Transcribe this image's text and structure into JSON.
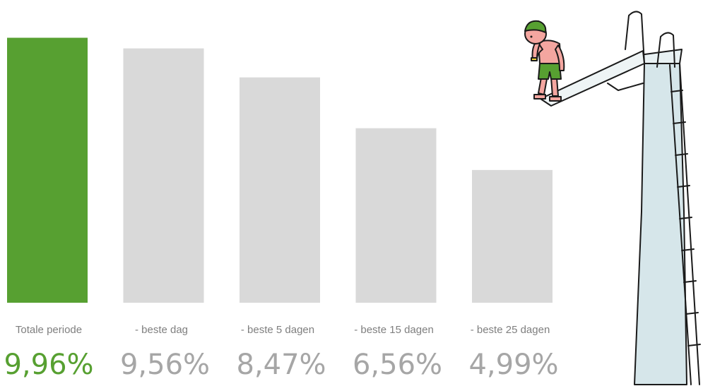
{
  "chart_data": {
    "type": "bar",
    "categories": [
      "Totale periode",
      "- beste dag",
      "- beste 5 dagen",
      "- beste 15 dagen",
      "- beste 25 dagen"
    ],
    "values": [
      9.96,
      9.56,
      8.47,
      6.56,
      4.99
    ],
    "value_labels": [
      "9,96%",
      "9,56%",
      "8,47%",
      "6,56%",
      "4,99%"
    ],
    "ylim": [
      0,
      10
    ],
    "grid": false,
    "legend": "none",
    "colors": {
      "highlight": "#57a031",
      "default": "#d9d9d9",
      "category_text": "#7f7f7f",
      "value_text_default": "#a6a6a6",
      "value_text_highlight": "#57a031"
    },
    "highlight_index": 0
  },
  "illustration": {
    "icon": "diver-on-diving-board-icon"
  }
}
